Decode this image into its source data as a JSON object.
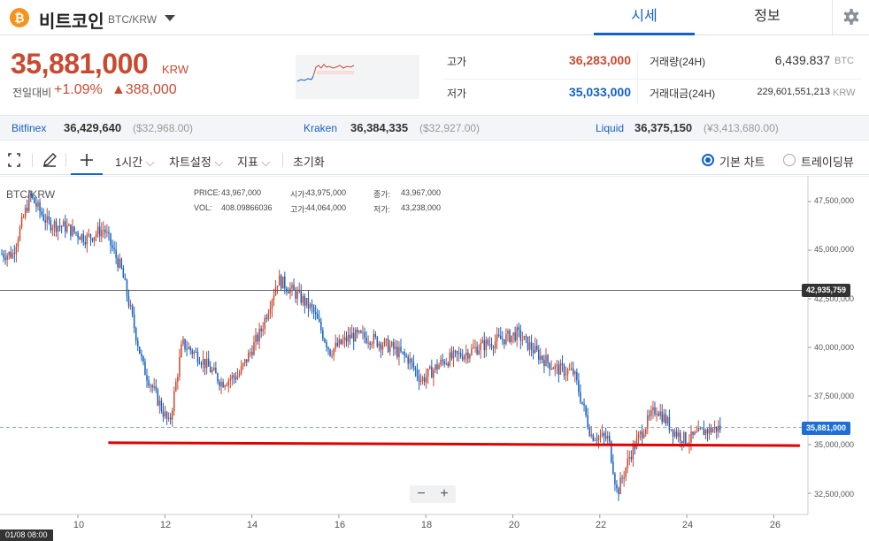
{
  "header": {
    "coin_symbol": "₿",
    "coin_name": "비트코인",
    "pair": "BTC/KRW",
    "tabs": [
      "시세",
      "정보"
    ],
    "active_tab": "시세"
  },
  "price": {
    "current": "35,881,000",
    "unit": "KRW",
    "change_label": "전일대비",
    "change_pct": "+1.09%",
    "change_abs": "▲388,000"
  },
  "stats": {
    "high_label": "고가",
    "high": "36,283,000",
    "low_label": "저가",
    "low": "35,033,000",
    "volume_label": "거래량(24H)",
    "volume": "6,439.837",
    "volume_unit": "BTC",
    "amount_label": "거래대금(24H)",
    "amount": "229,601,551,213",
    "amount_unit": "KRW"
  },
  "colors": {
    "up": "#c84a31",
    "down": "#1261c4",
    "accent": "#1261c4",
    "support_line": "#e00000"
  },
  "exchanges": [
    {
      "name": "Bitfinex",
      "price": "36,429,640",
      "foreign": "($32,968.00)"
    },
    {
      "name": "Kraken",
      "price": "36,384,335",
      "foreign": "($32,927.00)"
    },
    {
      "name": "Liquid",
      "price": "36,375,150",
      "foreign": "(¥3,413,680.00)"
    }
  ],
  "toolbar": {
    "interval": "1시간",
    "chart_settings": "차트설정",
    "indicators": "지표",
    "reset": "초기화",
    "view_basic": "기본 차트",
    "view_tradingview": "트레이딩뷰",
    "selected_view": "기본 차트"
  },
  "chart_info": {
    "symbol": "BTC/KRW",
    "price_label": "PRICE:",
    "price": "43,967,000",
    "vol_label": "VOL:",
    "vol": "408.09866036",
    "open_label": "시가:",
    "open": "43,975,000",
    "high_label": "고가:",
    "high": "44,064,000",
    "close_label": "종가:",
    "close": "43,967,000",
    "low_label": "저가:",
    "low": "43,238,000",
    "crosshair_price": "42,935,759",
    "current_price": "35,881,000",
    "time_badge": "01/08 08:00",
    "zoom_out": "−",
    "zoom_in": "+"
  },
  "chart_data": {
    "type": "candlestick",
    "interval": "1h",
    "y_ticks": [
      "47,500,000",
      "45,000,000",
      "42,500,000",
      "40,000,000",
      "37,500,000",
      "35,000,000",
      "32,500,000"
    ],
    "x_ticks": [
      "10",
      "12",
      "14",
      "16",
      "18",
      "20",
      "22",
      "24",
      "26"
    ],
    "ylim": [
      31500000,
      48500000
    ],
    "price_path_days": [
      8.5,
      8.9,
      9.3,
      9.7,
      10.2,
      10.6,
      11.0,
      11.5,
      11.9,
      12.1,
      12.4,
      12.8,
      13.3,
      13.7,
      14.2,
      14.6,
      15.1,
      15.4,
      15.8,
      16.3,
      16.7,
      17.2,
      17.6,
      17.9,
      18.4,
      18.9,
      19.3,
      19.7,
      20.1,
      20.6,
      21.0,
      21.4,
      21.8,
      22.2,
      22.4,
      22.7,
      23.0,
      23.3,
      23.7,
      24.0,
      24.4,
      24.8
    ],
    "price_path_values": [
      44800000,
      47800000,
      46400000,
      46200000,
      45600000,
      46100000,
      44000000,
      39000000,
      37000000,
      36000000,
      40200000,
      39500000,
      38200000,
      38600000,
      40800000,
      43500000,
      42600000,
      41900000,
      39800000,
      40600000,
      40500000,
      40000000,
      39400000,
      38300000,
      39300000,
      39700000,
      40100000,
      40400000,
      40700000,
      39600000,
      38900000,
      38700000,
      35500000,
      35300000,
      32500000,
      34500000,
      35800000,
      36900000,
      35700000,
      35200000,
      35700000,
      35881000
    ],
    "support_line": {
      "start_day": 10.7,
      "start_value": 35100000,
      "end_day": 26.6,
      "end_value": 34950000
    },
    "crosshair_value": 42935759,
    "current_value": 35881000
  }
}
